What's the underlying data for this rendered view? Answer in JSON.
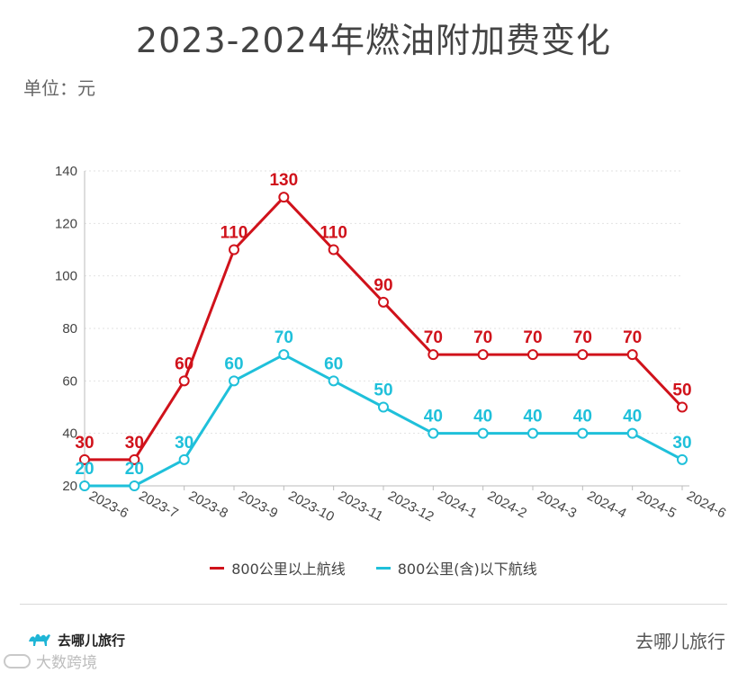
{
  "title": "2023-2024年燃油附加费变化",
  "unit_label": "单位：元",
  "brand": {
    "left_name": "去哪儿旅行",
    "right_name": "去哪儿旅行",
    "logo_icon": "camel-icon"
  },
  "watermark": {
    "text": "大数跨境",
    "icon": "watermark-logo-icon"
  },
  "chart_data": {
    "type": "line",
    "categories": [
      "2023-6",
      "2023-7",
      "2023-8",
      "2023-9",
      "2023-10",
      "2023-11",
      "2023-12",
      "2024-1",
      "2024-2",
      "2024-3",
      "2024-4",
      "2024-5",
      "2024-6"
    ],
    "series": [
      {
        "name": "800公里以上航线",
        "color": "#d0121b",
        "values": [
          30,
          30,
          60,
          110,
          130,
          110,
          90,
          70,
          70,
          70,
          70,
          70,
          50
        ]
      },
      {
        "name": "800公里(含)以下航线",
        "color": "#1fc0da",
        "values": [
          20,
          20,
          30,
          60,
          70,
          60,
          50,
          40,
          40,
          40,
          40,
          40,
          30
        ]
      }
    ],
    "ylim": [
      20,
      140
    ],
    "yticks": [
      20,
      40,
      60,
      80,
      100,
      120,
      140
    ],
    "grid": true,
    "legend_position": "bottom",
    "xlabel": "",
    "ylabel": ""
  }
}
